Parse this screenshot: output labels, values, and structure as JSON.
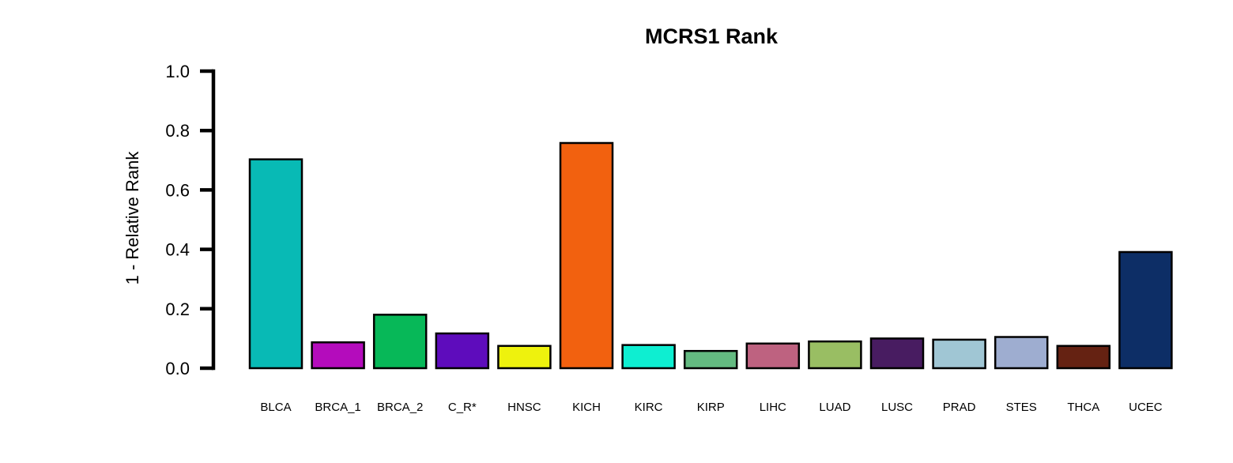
{
  "chart_data": {
    "type": "bar",
    "title": "MCRS1 Rank",
    "xlabel": "",
    "ylabel": "1 - Relative Rank",
    "ylim": [
      0,
      1.0
    ],
    "yticks": [
      "0.0",
      "0.2",
      "0.4",
      "0.6",
      "0.8",
      "1.0"
    ],
    "ytick_values": [
      0,
      0.2,
      0.4,
      0.6,
      0.8,
      1.0
    ],
    "grid": false,
    "categories": [
      "BLCA",
      "BRCA_1",
      "BRCA_2",
      "C_R*",
      "HNSC",
      "KICH",
      "KIRC",
      "KIRP",
      "LIHC",
      "LUAD",
      "LUSC",
      "PRAD",
      "STES",
      "THCA",
      "UCEC"
    ],
    "values": [
      0.703,
      0.087,
      0.18,
      0.117,
      0.075,
      0.758,
      0.078,
      0.058,
      0.083,
      0.09,
      0.1,
      0.096,
      0.105,
      0.075,
      0.391
    ],
    "colors": [
      "#08BAB5",
      "#B40CBC",
      "#07B858",
      "#5E0CBC",
      "#EEF20D",
      "#F2610F",
      "#0EEED1",
      "#64BA81",
      "#BE6280",
      "#99BE63",
      "#481C61",
      "#A0C6D4",
      "#9EADD0",
      "#652212",
      "#0D2E66"
    ]
  }
}
